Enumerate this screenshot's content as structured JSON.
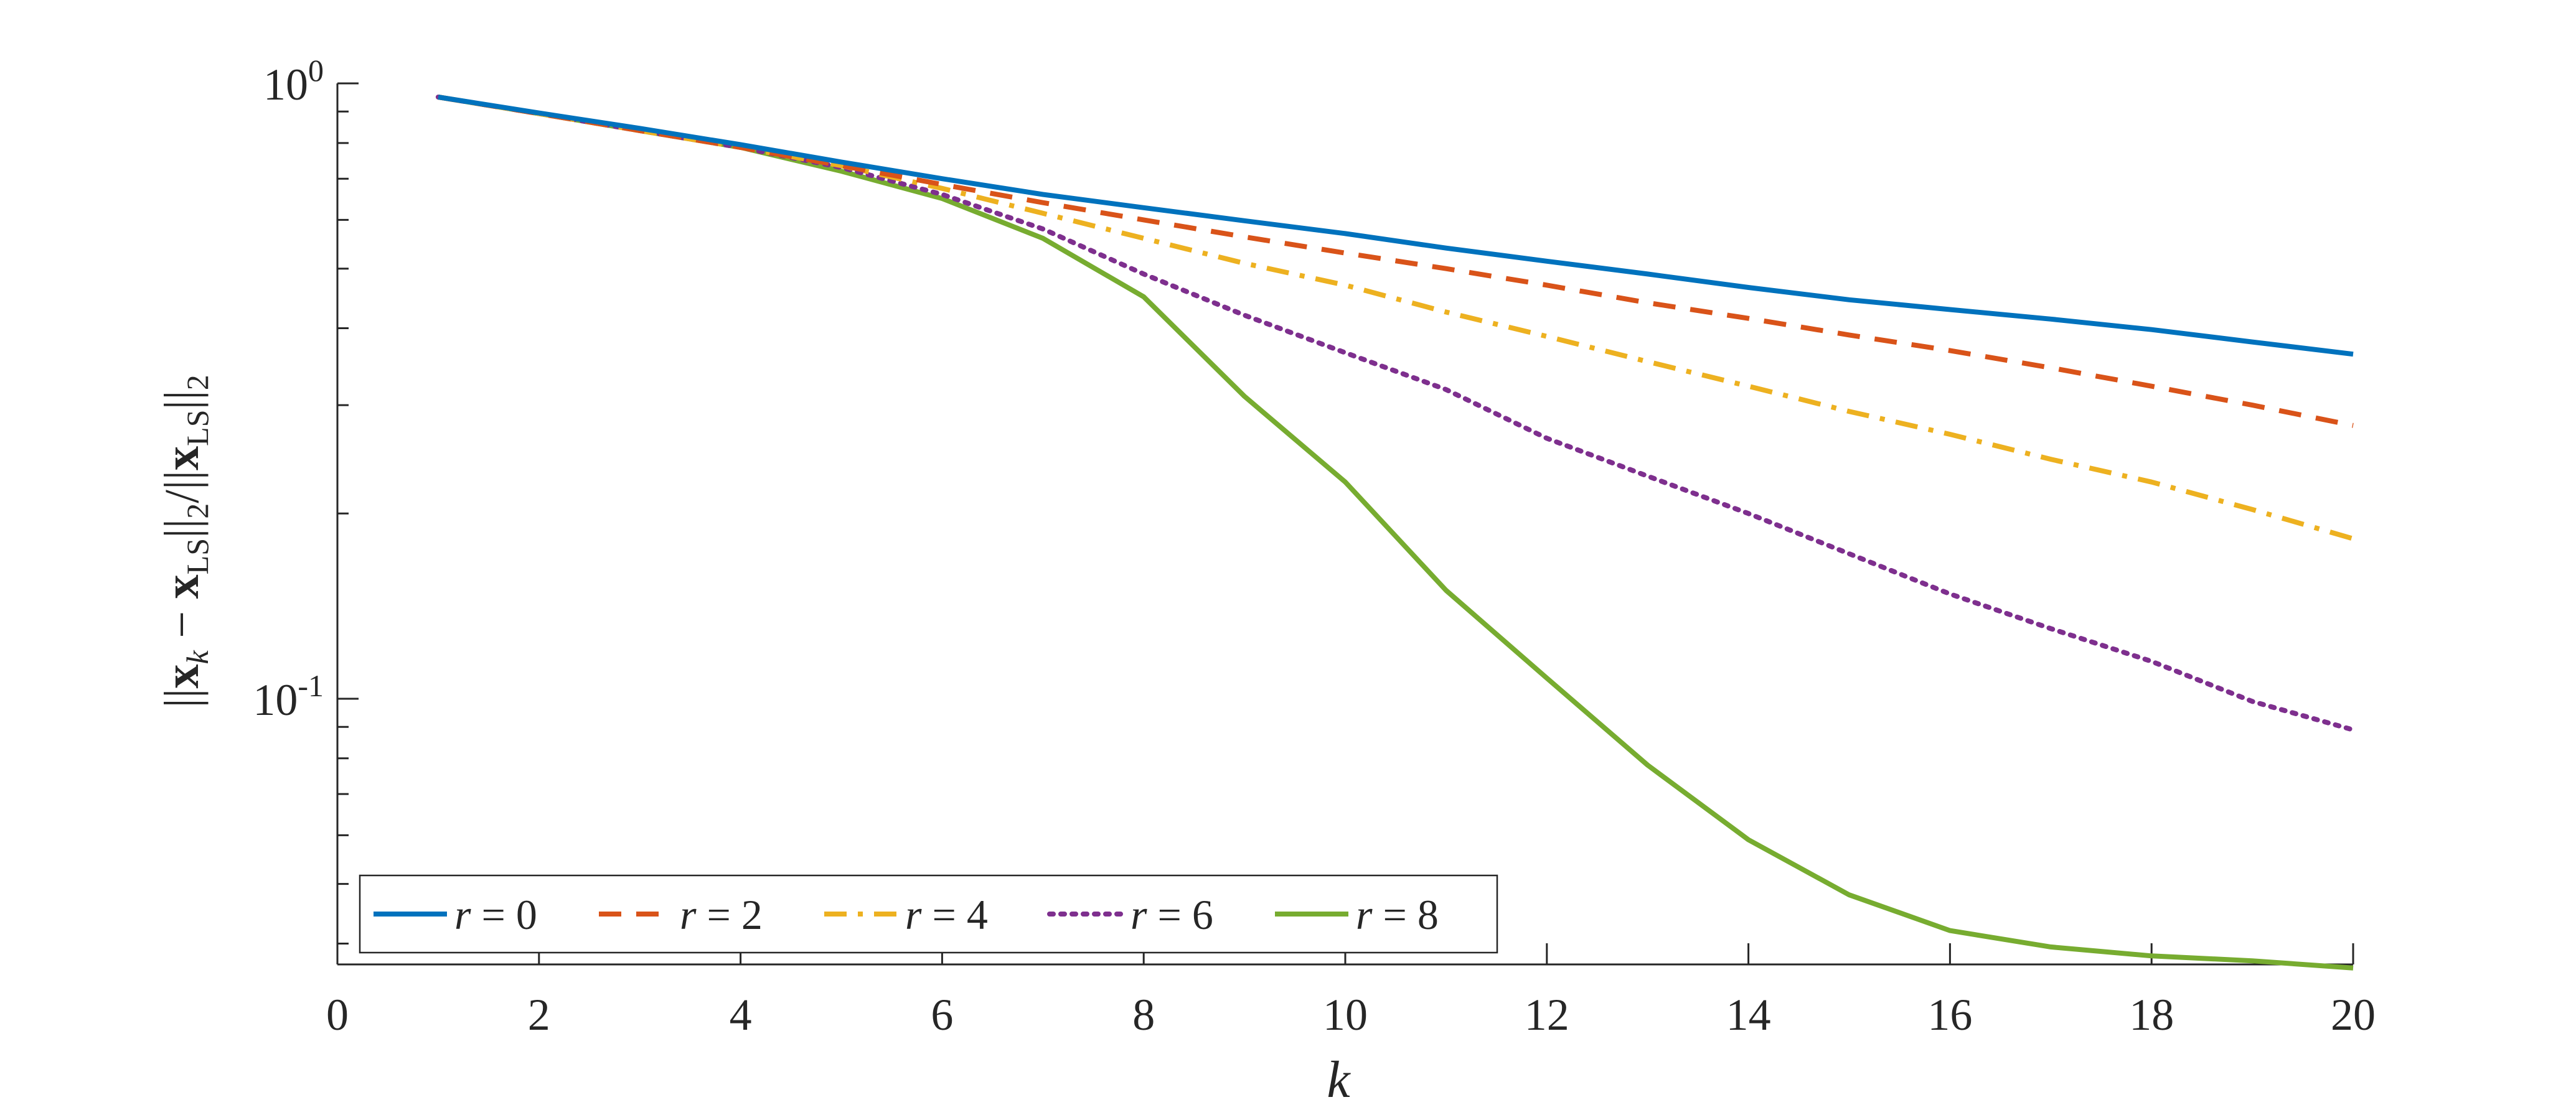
{
  "chart_data": {
    "type": "line",
    "xlabel": "k",
    "ylabel": {
      "open": "||",
      "x_sym": "x",
      "x_sub": "k",
      "minus": " − ",
      "ls_sym": "x",
      "ls_sub": "LS",
      "close_norm": "||",
      "close_sub": "2",
      "slash": "/",
      "den_open": "||",
      "den_x": "x",
      "den_sub": "LS",
      "den_close": "||",
      "den_close_sub": "2"
    },
    "xlim": [
      0,
      20
    ],
    "ylim": [
      0.037,
      1.0
    ],
    "yscale": "log",
    "grid": false,
    "legend_position": "bottom-left",
    "x_ticks": [
      "0",
      "2",
      "4",
      "6",
      "8",
      "10",
      "12",
      "14",
      "16",
      "18",
      "20"
    ],
    "y_ticks": [
      {
        "base": "10",
        "exp": "0",
        "value": 1.0
      },
      {
        "base": "10",
        "exp": "-1",
        "value": 0.1
      }
    ],
    "x": [
      1,
      2,
      3,
      4,
      5,
      6,
      7,
      8,
      9,
      10,
      11,
      12,
      13,
      14,
      15,
      16,
      17,
      18,
      19,
      20
    ],
    "series": [
      {
        "name": "r = 0",
        "var": "r",
        "eq": " = ",
        "num": "0",
        "color": "#0072BD",
        "dash": "solid",
        "values": [
          0.95,
          0.895,
          0.845,
          0.795,
          0.745,
          0.7,
          0.66,
          0.628,
          0.598,
          0.57,
          0.54,
          0.514,
          0.49,
          0.466,
          0.445,
          0.429,
          0.414,
          0.398,
          0.38,
          0.363
        ]
      },
      {
        "name": "r = 2",
        "var": "r",
        "eq": " = ",
        "num": "2",
        "color": "#D95319",
        "dash": "dashed",
        "values": [
          0.95,
          0.893,
          0.838,
          0.787,
          0.735,
          0.685,
          0.64,
          0.6,
          0.563,
          0.53,
          0.5,
          0.47,
          0.44,
          0.415,
          0.39,
          0.368,
          0.345,
          0.322,
          0.3,
          0.278
        ]
      },
      {
        "name": "r = 4",
        "var": "r",
        "eq": " = ",
        "num": "4",
        "color": "#EDB120",
        "dash": "dashdot",
        "values": [
          0.95,
          0.893,
          0.838,
          0.787,
          0.735,
          0.675,
          0.615,
          0.56,
          0.51,
          0.47,
          0.425,
          0.388,
          0.353,
          0.322,
          0.293,
          0.269,
          0.245,
          0.225,
          0.203,
          0.182
        ]
      },
      {
        "name": "r = 6",
        "var": "r",
        "eq": " = ",
        "num": "6",
        "color": "#7E2F8E",
        "dash": "dotted",
        "values": [
          0.95,
          0.893,
          0.838,
          0.787,
          0.73,
          0.66,
          0.58,
          0.49,
          0.42,
          0.365,
          0.318,
          0.265,
          0.23,
          0.2,
          0.172,
          0.148,
          0.13,
          0.115,
          0.099,
          0.089
        ]
      },
      {
        "name": "r = 8",
        "var": "r",
        "eq": " = ",
        "num": "8",
        "color": "#77AC30",
        "dash": "solid",
        "values": [
          0.95,
          0.893,
          0.838,
          0.787,
          0.72,
          0.65,
          0.56,
          0.45,
          0.31,
          0.225,
          0.15,
          0.108,
          0.078,
          0.059,
          0.048,
          0.042,
          0.0395,
          0.0382,
          0.0375,
          0.0365
        ]
      }
    ]
  }
}
